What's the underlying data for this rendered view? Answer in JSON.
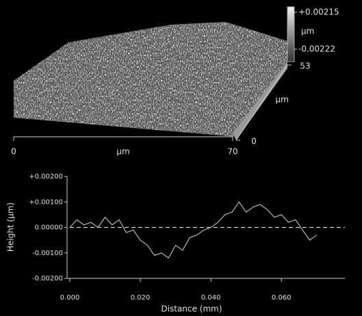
{
  "chart_data": [
    {
      "type": "surface",
      "xlabel": "µm",
      "ylabel": "µm",
      "zlabel": "µm",
      "xlim": [
        0,
        70
      ],
      "xticks": [
        0,
        70
      ],
      "ylim": [
        0,
        53
      ],
      "yticks": [
        0,
        53
      ],
      "zlim": [
        -0.00222,
        0.00215
      ],
      "zticks": [
        {
          "value": 0.00215,
          "label": "+0.00215"
        },
        -0.00222
      ],
      "color": "#d0d0d0"
    },
    {
      "type": "line",
      "xlabel": "Distance (mm)",
      "ylabel": "Height (µm)",
      "x": [
        0,
        0.002,
        0.004,
        0.006,
        0.008,
        0.01,
        0.012,
        0.014,
        0.016,
        0.018,
        0.02,
        0.022,
        0.024,
        0.026,
        0.028,
        0.03,
        0.032,
        0.034,
        0.036,
        0.038,
        0.04,
        0.042,
        0.044,
        0.046,
        0.048,
        0.05,
        0.052,
        0.054,
        0.056,
        0.058,
        0.06,
        0.062,
        0.064,
        0.066,
        0.068,
        0.07
      ],
      "series": [
        {
          "color": "#b8b8b8",
          "values": [
            0,
            0.0003,
            0.0001,
            0.0002,
            0,
            0.0004,
            0.0001,
            0.0003,
            -0.0002,
            -0.0001,
            -0.0005,
            -0.0007,
            -0.0011,
            -0.001,
            -0.0012,
            -0.0007,
            -0.0009,
            -0.0004,
            -0.0003,
            -0.0001,
            0,
            0.0002,
            0.0005,
            0.0006,
            0.001,
            0.0006,
            0.0008,
            0.0009,
            0.0007,
            0.0004,
            0.0005,
            0.0002,
            0.0003,
            -0.0001,
            -0.0005,
            -0.0003
          ]
        }
      ],
      "xlim": [
        0,
        0.078
      ],
      "xticks": [
        {
          "value": 0,
          "label": "0.000"
        },
        {
          "value": 0.02,
          "label": "0.020"
        },
        {
          "value": 0.04,
          "label": "0.040"
        },
        {
          "value": 0.06,
          "label": "0.060"
        }
      ],
      "ylim": [
        -0.002,
        0.002
      ],
      "yticks": [
        {
          "value": 0.002,
          "label": "+0.00200"
        },
        {
          "value": 0.001,
          "label": "+0.00100"
        },
        {
          "value": 0,
          "label": "0.00000"
        },
        {
          "value": -0.001,
          "label": "-0.00100"
        },
        {
          "value": -0.002,
          "label": "-0.00200"
        }
      ],
      "zero_line": true
    }
  ]
}
